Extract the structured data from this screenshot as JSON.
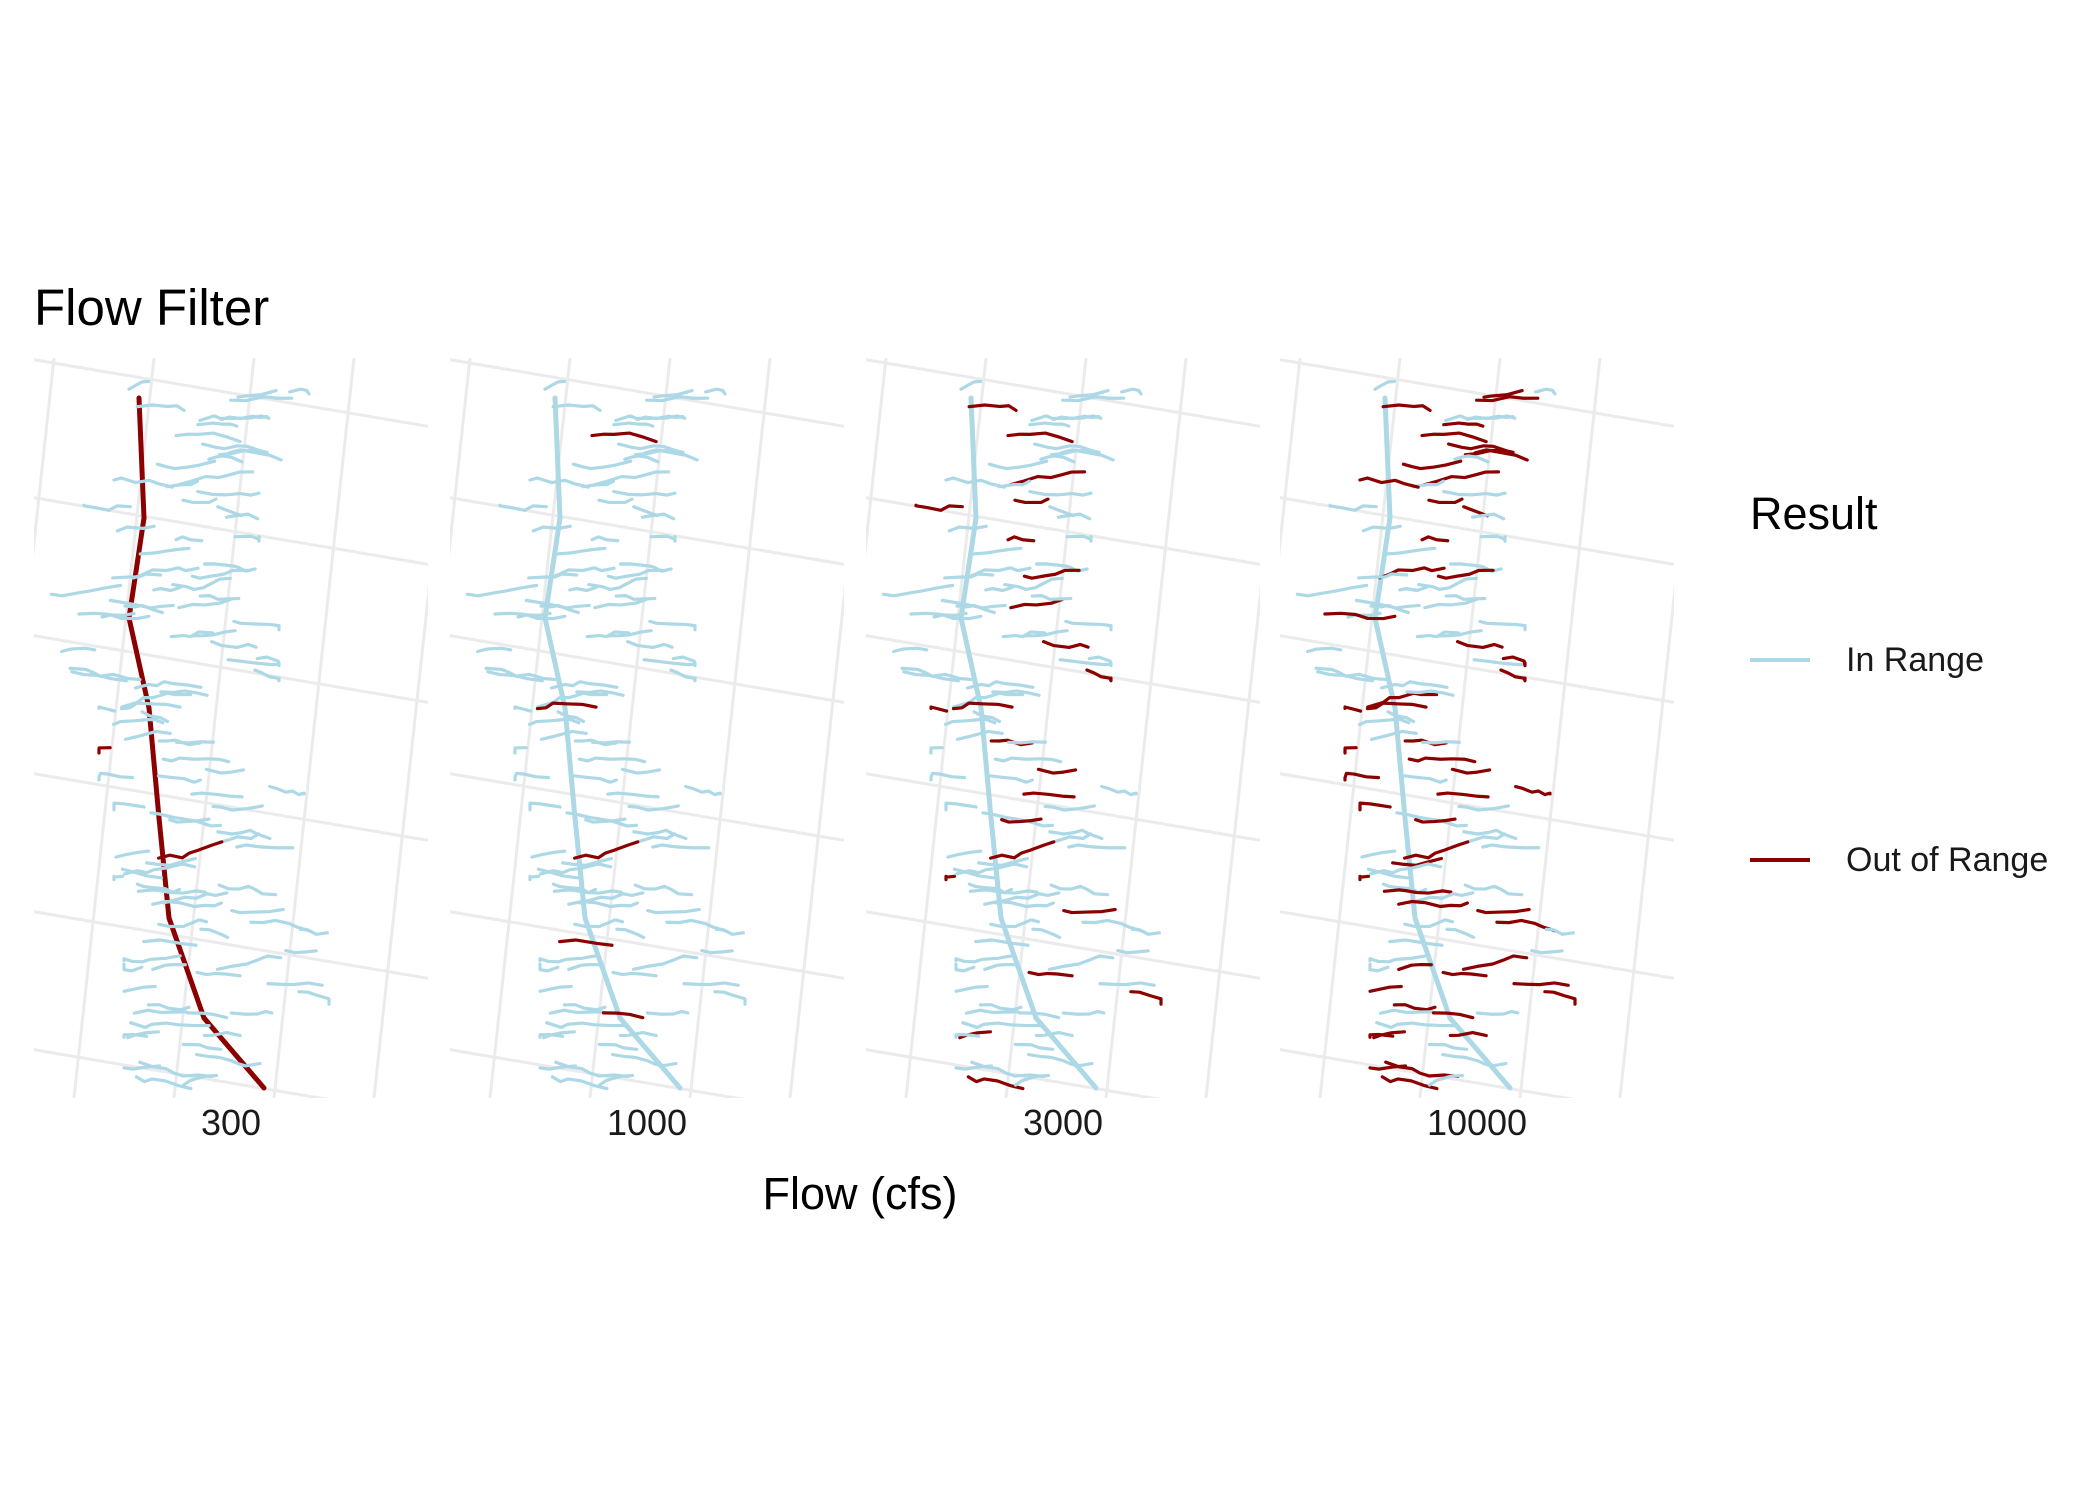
{
  "title": "Flow Filter",
  "x_axis_label": "Flow (cfs)",
  "legend": {
    "title": "Result",
    "items": [
      {
        "label": "In Range",
        "color": "#add8e6"
      },
      {
        "label": "Out of Range",
        "color": "#8b0000"
      }
    ]
  },
  "panels": [
    {
      "label": "300"
    },
    {
      "label": "1000"
    },
    {
      "label": "3000"
    },
    {
      "label": "10000"
    }
  ],
  "colors": {
    "in_range": "#add8e6",
    "out_of_range": "#8b0000",
    "grid": "#ebebeb"
  }
}
